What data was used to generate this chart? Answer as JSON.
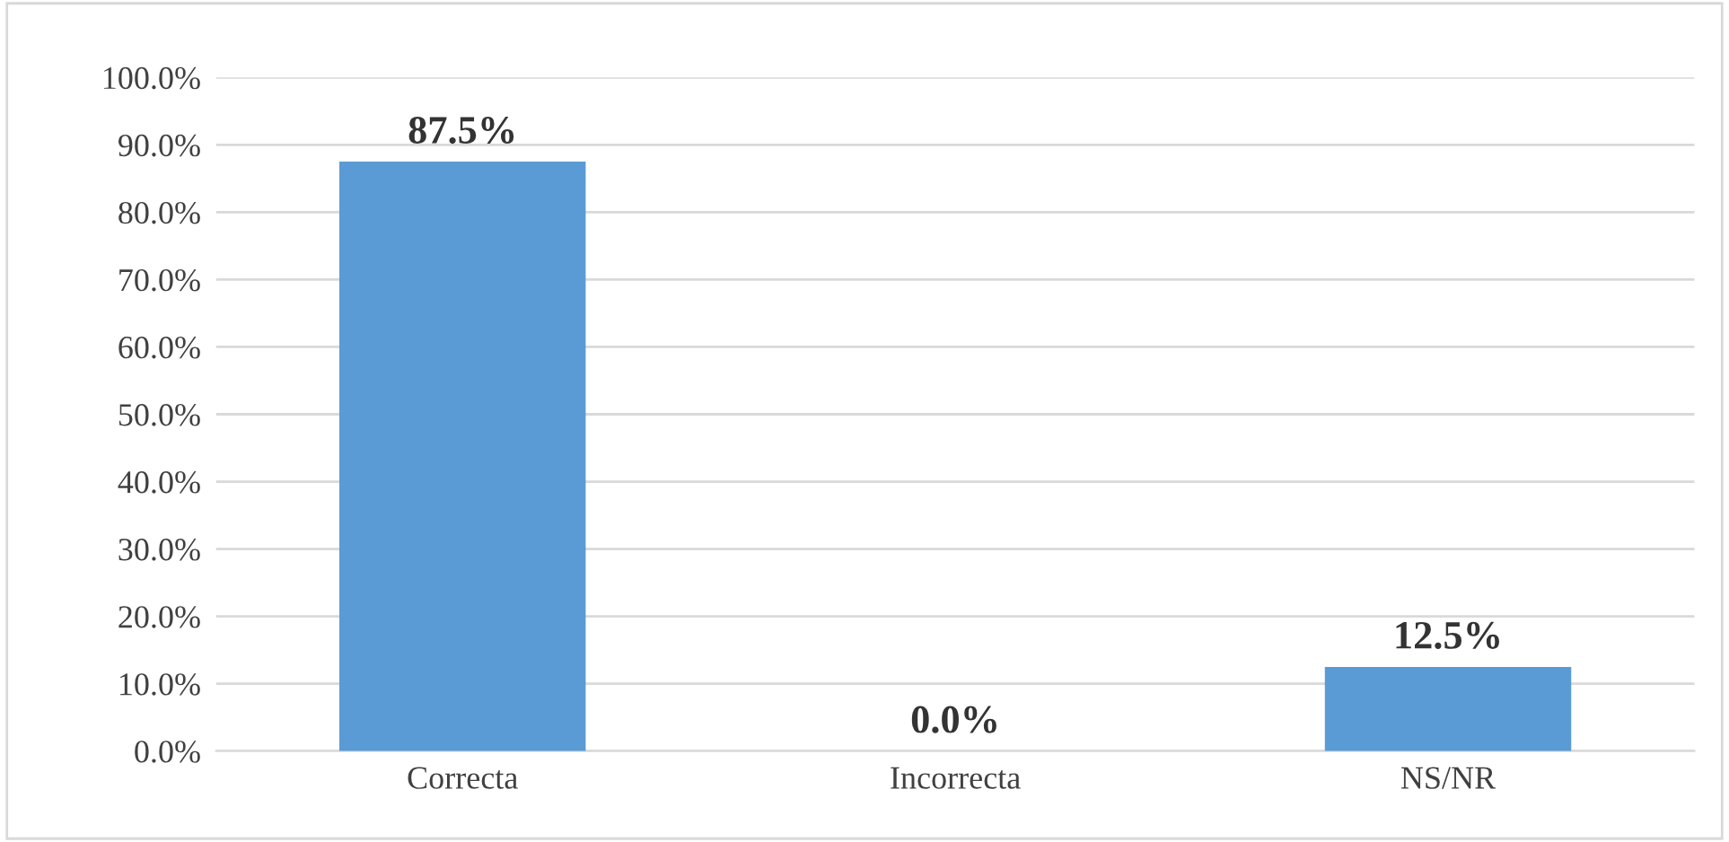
{
  "chart_data": {
    "type": "bar",
    "categories": [
      "Correcta",
      "Incorrecta",
      "NS/NR"
    ],
    "values": [
      87.5,
      0.0,
      12.5
    ],
    "value_labels": [
      "87.5%",
      "0.0%",
      "12.5%"
    ],
    "color": "#5b9bd5",
    "ylim": [
      0,
      100
    ],
    "yticks": [
      {
        "value": 0,
        "label": "0.0%"
      },
      {
        "value": 10,
        "label": "10.0%"
      },
      {
        "value": 20,
        "label": "20.0%"
      },
      {
        "value": 30,
        "label": "30.0%"
      },
      {
        "value": 40,
        "label": "40.0%"
      },
      {
        "value": 50,
        "label": "50.0%"
      },
      {
        "value": 60,
        "label": "60.0%"
      },
      {
        "value": 70,
        "label": "70.0%"
      },
      {
        "value": 80,
        "label": "80.0%"
      },
      {
        "value": 90,
        "label": "90.0%"
      },
      {
        "value": 100,
        "label": "100.0%"
      }
    ],
    "grid": "y",
    "legend": false
  }
}
